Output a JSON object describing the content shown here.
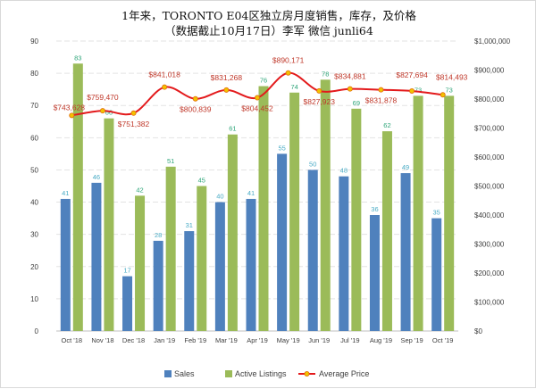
{
  "chart_data": {
    "type": "bar",
    "title_line1": "1年来，TORONTO E04区独立房月度销售，库存，及价格",
    "title_line2": "（数据截止10月17日）李军 微信 junli64",
    "categories": [
      "Oct '18",
      "Nov '18",
      "Dec '18",
      "Jan '19",
      "Feb '19",
      "Mar '19",
      "Apr '19",
      "May '19",
      "Jun '19",
      "Jul '19",
      "Aug '19",
      "Sep '19",
      "Oct '19"
    ],
    "series": [
      {
        "name": "Sales",
        "type": "bar",
        "axis": "left",
        "color": "#4f81bd",
        "label_color": "#4bacc6",
        "values": [
          41,
          46,
          17,
          28,
          31,
          40,
          41,
          55,
          50,
          48,
          36,
          49,
          35
        ]
      },
      {
        "name": "Active Listings",
        "type": "bar",
        "axis": "left",
        "color": "#9bbb59",
        "label_color": "#2fa67a",
        "values": [
          83,
          66,
          42,
          51,
          45,
          61,
          76,
          74,
          78,
          69,
          62,
          73,
          73
        ]
      },
      {
        "name": "Average Price",
        "type": "line",
        "axis": "right",
        "color": "#e31a1c",
        "marker_color": "#f2c200",
        "values": [
          743628,
          759470,
          751382,
          841018,
          800839,
          831268,
          804452,
          890171,
          827923,
          834881,
          831878,
          827694,
          814493
        ],
        "labels": [
          "$743,628",
          "$759,470",
          "$751,382",
          "$841,018",
          "$800,839",
          "$831,268",
          "$804,452",
          "$890,171",
          "$827,923",
          "$834,881",
          "$831,878",
          "$827,694",
          "$814,493"
        ]
      }
    ],
    "left_axis": {
      "ylim": [
        0,
        90
      ],
      "ticks": [
        "0",
        "10",
        "20",
        "30",
        "40",
        "50",
        "60",
        "70",
        "80",
        "90"
      ]
    },
    "right_axis": {
      "ylim": [
        0,
        1000000
      ],
      "ticks": [
        "$0",
        "$100,000",
        "$200,000",
        "$300,000",
        "$400,000",
        "$500,000",
        "$600,000",
        "$700,000",
        "$800,000",
        "$900,000",
        "$1,000,000"
      ]
    },
    "grid": true,
    "legend_position": "bottom"
  }
}
